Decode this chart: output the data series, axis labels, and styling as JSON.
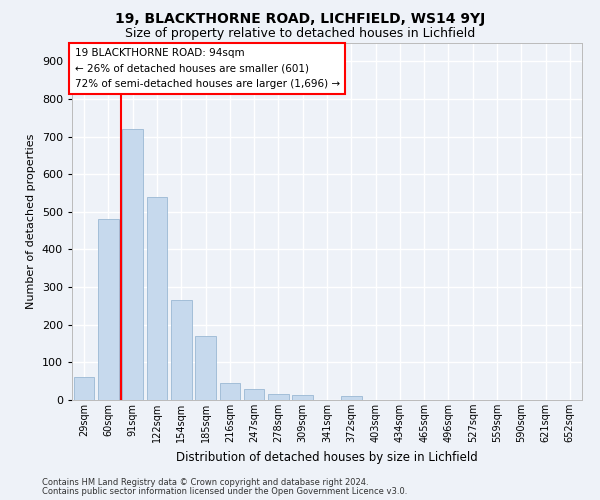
{
  "title1": "19, BLACKTHORNE ROAD, LICHFIELD, WS14 9YJ",
  "title2": "Size of property relative to detached houses in Lichfield",
  "xlabel": "Distribution of detached houses by size in Lichfield",
  "ylabel": "Number of detached properties",
  "categories": [
    "29sqm",
    "60sqm",
    "91sqm",
    "122sqm",
    "154sqm",
    "185sqm",
    "216sqm",
    "247sqm",
    "278sqm",
    "309sqm",
    "341sqm",
    "372sqm",
    "403sqm",
    "434sqm",
    "465sqm",
    "496sqm",
    "527sqm",
    "559sqm",
    "590sqm",
    "621sqm",
    "652sqm"
  ],
  "values": [
    60,
    480,
    720,
    540,
    265,
    170,
    45,
    30,
    15,
    12,
    0,
    10,
    0,
    0,
    0,
    0,
    0,
    0,
    0,
    0,
    0
  ],
  "bar_color": "#c6d9ed",
  "bar_edge_color": "#9ab8d4",
  "annotation_text": "19 BLACKTHORNE ROAD: 94sqm\n← 26% of detached houses are smaller (601)\n72% of semi-detached houses are larger (1,696) →",
  "ylim": [
    0,
    950
  ],
  "yticks": [
    0,
    100,
    200,
    300,
    400,
    500,
    600,
    700,
    800,
    900
  ],
  "footnote1": "Contains HM Land Registry data © Crown copyright and database right 2024.",
  "footnote2": "Contains public sector information licensed under the Open Government Licence v3.0.",
  "bg_color": "#eef2f8",
  "grid_color": "#ffffff",
  "title1_fontsize": 10,
  "title2_fontsize": 9,
  "red_line_index": 1.5
}
